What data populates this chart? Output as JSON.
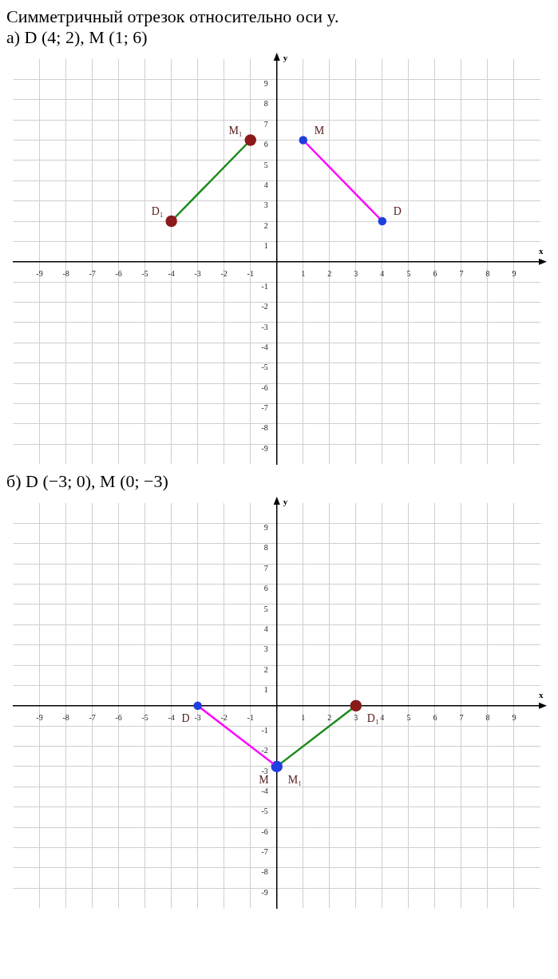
{
  "chart_data": [
    {
      "type": "line",
      "title": "Симметричный отрезок относительно оси y.",
      "subtitle": "а) D (4; 2),  M (1; 6)",
      "xlabel": "x",
      "ylabel": "y",
      "xlim": [
        -10,
        10
      ],
      "ylim": [
        -10,
        10
      ],
      "xticks": [
        -9,
        -8,
        -7,
        -6,
        -5,
        -4,
        -3,
        -2,
        -1,
        {
          "value": 0,
          "label": null
        },
        1,
        2,
        3,
        4,
        5,
        6,
        7,
        8,
        9
      ],
      "yticks": [
        -9,
        -8,
        -7,
        -6,
        -5,
        -4,
        -3,
        -2,
        -1,
        {
          "value": 0,
          "label": null
        },
        1,
        2,
        3,
        4,
        5,
        6,
        7,
        8,
        9
      ],
      "grid": true,
      "legend": false,
      "marker": "circle",
      "series": [
        {
          "color": "#ff00ff",
          "x": [
            4,
            1
          ],
          "values": [
            2,
            6
          ],
          "colors": [
            "#1f3fdf",
            "#1f3fdf"
          ]
        },
        {
          "color": "#1a8a1a",
          "x": [
            -4,
            -1
          ],
          "values": [
            2,
            6
          ],
          "colors": [
            "#8b1a1a",
            "#8b1a1a"
          ]
        }
      ],
      "annotations": [
        {
          "text": "D",
          "x": 4,
          "y": 2
        },
        {
          "text": "M",
          "x": 1,
          "y": 6
        },
        {
          "text": "D₁",
          "x": -4,
          "y": 2
        },
        {
          "text": "M₁",
          "x": -1,
          "y": 6
        }
      ]
    },
    {
      "type": "line",
      "title": "б) D (−3; 0),  M (0; −3)",
      "xlabel": "x",
      "ylabel": "y",
      "xlim": [
        -10,
        10
      ],
      "ylim": [
        -10,
        10
      ],
      "xticks": [
        -9,
        -8,
        -7,
        -6,
        -5,
        -4,
        -3,
        -2,
        -1,
        {
          "value": 0,
          "label": null
        },
        1,
        2,
        3,
        4,
        5,
        6,
        7,
        8,
        9
      ],
      "yticks": [
        -9,
        -8,
        -7,
        -6,
        -5,
        -4,
        -3,
        -2,
        -1,
        {
          "value": 0,
          "label": null
        },
        1,
        2,
        3,
        4,
        5,
        6,
        7,
        8,
        9
      ],
      "grid": true,
      "legend": false,
      "marker": "circle",
      "series": [
        {
          "color": "#ff00ff",
          "x": [
            -3,
            0
          ],
          "values": [
            0,
            -3
          ],
          "colors": [
            "#1f3fdf",
            "#1f3fdf"
          ]
        },
        {
          "color": "#1a8a1a",
          "x": [
            3,
            0
          ],
          "values": [
            0,
            -3
          ],
          "colors": [
            "#8b1a1a",
            "#1f3fdf"
          ]
        }
      ],
      "annotations": [
        {
          "text": "D",
          "x": -3,
          "y": 0
        },
        {
          "text": "M",
          "x": 0,
          "y": -3
        },
        {
          "text": "D₁",
          "x": 3,
          "y": 0
        },
        {
          "text": "M₁",
          "x": 0,
          "y": -3
        }
      ]
    }
  ]
}
